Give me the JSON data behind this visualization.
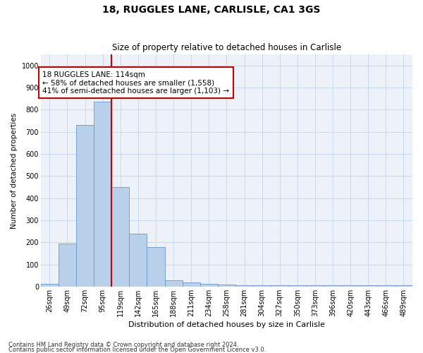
{
  "title1": "18, RUGGLES LANE, CARLISLE, CA1 3GS",
  "title2": "Size of property relative to detached houses in Carlisle",
  "xlabel": "Distribution of detached houses by size in Carlisle",
  "ylabel": "Number of detached properties",
  "categories": [
    "26sqm",
    "49sqm",
    "72sqm",
    "95sqm",
    "119sqm",
    "142sqm",
    "165sqm",
    "188sqm",
    "211sqm",
    "234sqm",
    "258sqm",
    "281sqm",
    "304sqm",
    "327sqm",
    "350sqm",
    "373sqm",
    "396sqm",
    "420sqm",
    "443sqm",
    "466sqm",
    "489sqm"
  ],
  "values": [
    13,
    195,
    730,
    835,
    450,
    240,
    178,
    30,
    18,
    13,
    8,
    5,
    5,
    5,
    5,
    5,
    5,
    5,
    5,
    5,
    5
  ],
  "bar_color": "#b8d0ea",
  "bar_edge_color": "#6699cc",
  "grid_color": "#c8d8ec",
  "background_color": "#edf2f9",
  "annotation_line1": "18 RUGGLES LANE: 114sqm",
  "annotation_line2": "← 58% of detached houses are smaller (1,558)",
  "annotation_line3": "41% of semi-detached houses are larger (1,103) →",
  "vline_index": 3.5,
  "vline_color": "#cc0000",
  "ylim": [
    0,
    1050
  ],
  "yticks": [
    0,
    100,
    200,
    300,
    400,
    500,
    600,
    700,
    800,
    900,
    1000
  ],
  "title1_fontsize": 10,
  "title2_fontsize": 8.5,
  "xlabel_fontsize": 8,
  "ylabel_fontsize": 7.5,
  "tick_fontsize": 7,
  "ann_fontsize": 7.5,
  "footnote1": "Contains HM Land Registry data © Crown copyright and database right 2024.",
  "footnote2": "Contains public sector information licensed under the Open Government Licence v3.0.",
  "footnote_fontsize": 6
}
